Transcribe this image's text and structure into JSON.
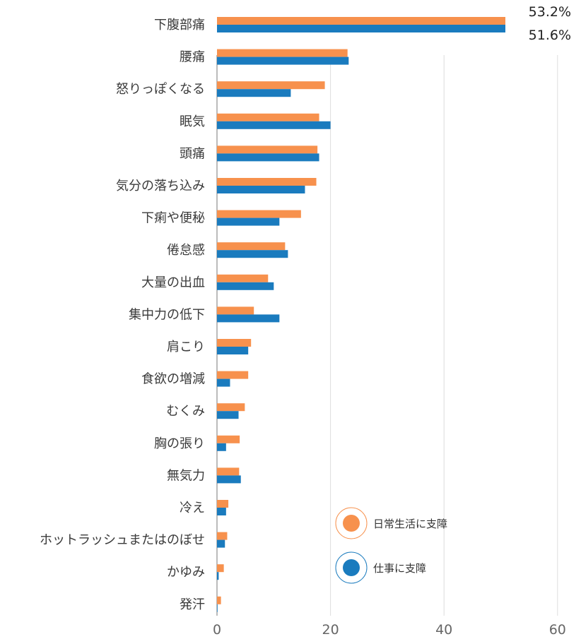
{
  "chart_data": {
    "type": "bar",
    "orientation": "horizontal",
    "categories": [
      "下腹部痛",
      "腰痛",
      "怒りっぽくなる",
      "眠気",
      "頭痛",
      "気分の落ち込み",
      "下痢や便秘",
      "倦怠感",
      "大量の出血",
      "集中力の低下",
      "肩こり",
      "食欲の増減",
      "むくみ",
      "胸の張り",
      "無気力",
      "冷え",
      "ホットラッシュまたはのぼせ",
      "かゆみ",
      "発汗"
    ],
    "series": [
      {
        "name": "日常生活に支障",
        "color": "#F7914D",
        "values": [
          53.2,
          23.0,
          19.0,
          18.0,
          17.7,
          17.5,
          14.8,
          12.0,
          9.0,
          6.5,
          6.0,
          5.5,
          4.9,
          4.0,
          3.9,
          2.0,
          1.8,
          1.2,
          0.7
        ]
      },
      {
        "name": "仕事に支障",
        "color": "#1A7BBE",
        "values": [
          51.6,
          23.2,
          13.0,
          20.0,
          18.0,
          15.5,
          11.0,
          12.5,
          10.0,
          11.0,
          5.5,
          2.3,
          3.8,
          1.6,
          4.2,
          1.6,
          1.4,
          0.3,
          0.1
        ]
      }
    ],
    "xlim": [
      0,
      60
    ],
    "xticks": [
      0,
      20,
      40,
      60
    ],
    "xtick_labels": [
      "0",
      "20",
      "40",
      "60"
    ],
    "data_labels": [
      "53.2%",
      "51.6%"
    ],
    "grid": true,
    "legend_position": "lower-right inside"
  }
}
